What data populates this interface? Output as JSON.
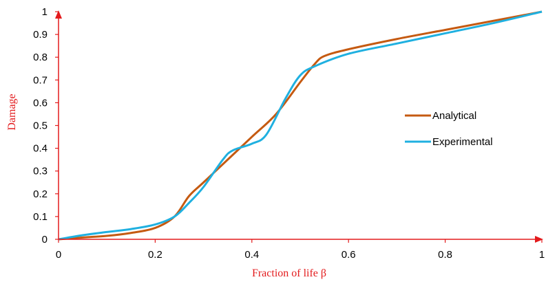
{
  "chart_data": {
    "type": "line",
    "xlabel": "Fraction of life β",
    "ylabel": "Damage",
    "xlim": [
      0,
      1
    ],
    "ylim": [
      0,
      1
    ],
    "x_ticks": [
      "0",
      "0.2",
      "0.4",
      "0.6",
      "0.8",
      "1"
    ],
    "y_ticks": [
      "0",
      "0.1",
      "0.2",
      "0.3",
      "0.4",
      "0.5",
      "0.6",
      "0.7",
      "0.8",
      "0.9",
      "1"
    ],
    "grid": false,
    "legend_position": "right",
    "axis_color": "#e31a1c",
    "series": [
      {
        "name": "Analytical",
        "color": "#c55a11",
        "points": [
          [
            0,
            0
          ],
          [
            0.05,
            0.008
          ],
          [
            0.1,
            0.015
          ],
          [
            0.15,
            0.028
          ],
          [
            0.2,
            0.05
          ],
          [
            0.24,
            0.1
          ],
          [
            0.27,
            0.19
          ],
          [
            0.3,
            0.25
          ],
          [
            0.35,
            0.35
          ],
          [
            0.4,
            0.45
          ],
          [
            0.45,
            0.55
          ],
          [
            0.5,
            0.69
          ],
          [
            0.53,
            0.77
          ],
          [
            0.55,
            0.805
          ],
          [
            0.6,
            0.835
          ],
          [
            0.7,
            0.88
          ],
          [
            0.8,
            0.92
          ],
          [
            0.9,
            0.96
          ],
          [
            1,
            1
          ]
        ]
      },
      {
        "name": "Experimental",
        "color": "#1fb0e0",
        "points": [
          [
            0,
            0
          ],
          [
            0.05,
            0.018
          ],
          [
            0.1,
            0.032
          ],
          [
            0.15,
            0.045
          ],
          [
            0.2,
            0.065
          ],
          [
            0.24,
            0.1
          ],
          [
            0.27,
            0.16
          ],
          [
            0.3,
            0.23
          ],
          [
            0.34,
            0.35
          ],
          [
            0.36,
            0.39
          ],
          [
            0.4,
            0.42
          ],
          [
            0.43,
            0.46
          ],
          [
            0.47,
            0.62
          ],
          [
            0.5,
            0.72
          ],
          [
            0.53,
            0.76
          ],
          [
            0.6,
            0.815
          ],
          [
            0.7,
            0.86
          ],
          [
            0.8,
            0.905
          ],
          [
            0.9,
            0.95
          ],
          [
            1,
            1
          ]
        ]
      }
    ]
  }
}
